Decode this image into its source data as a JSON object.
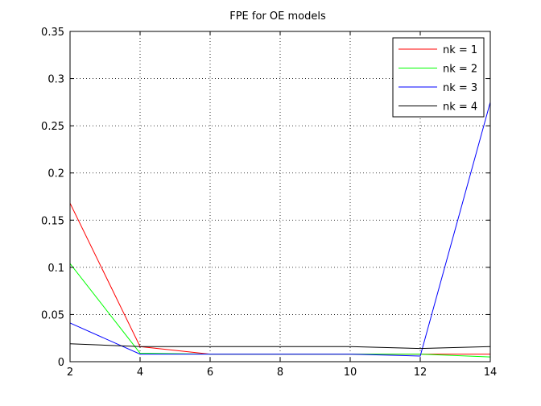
{
  "chart_data": {
    "type": "line",
    "title": "FPE for OE models",
    "xlabel": "",
    "ylabel": "",
    "xlim": [
      2,
      14
    ],
    "ylim": [
      0,
      0.35
    ],
    "xticks": [
      2,
      4,
      6,
      8,
      10,
      12,
      14
    ],
    "yticks": [
      0,
      0.05,
      0.1,
      0.15,
      0.2,
      0.25,
      0.3,
      0.35
    ],
    "xtick_labels": [
      "2",
      "4",
      "6",
      "8",
      "10",
      "12",
      "14"
    ],
    "ytick_labels": [
      "0",
      "0.05",
      "0.1",
      "0.15",
      "0.2",
      "0.25",
      "0.3",
      "0.35"
    ],
    "grid": true,
    "legend_position": "top-right",
    "x": [
      2,
      4,
      6,
      8,
      10,
      12,
      14
    ],
    "series": [
      {
        "name": "nk = 1",
        "color": "#ff0000",
        "values": [
          0.168,
          0.016,
          0.008,
          0.008,
          0.008,
          0.008,
          0.008
        ]
      },
      {
        "name": "nk = 2",
        "color": "#00ff00",
        "values": [
          0.104,
          0.009,
          0.008,
          0.008,
          0.008,
          0.008,
          0.005
        ]
      },
      {
        "name": "nk = 3",
        "color": "#0000ff",
        "values": [
          0.041,
          0.008,
          0.008,
          0.008,
          0.008,
          0.006,
          0.275
        ]
      },
      {
        "name": "nk = 4",
        "color": "#000000",
        "values": [
          0.019,
          0.016,
          0.016,
          0.016,
          0.016,
          0.014,
          0.016
        ]
      }
    ]
  }
}
